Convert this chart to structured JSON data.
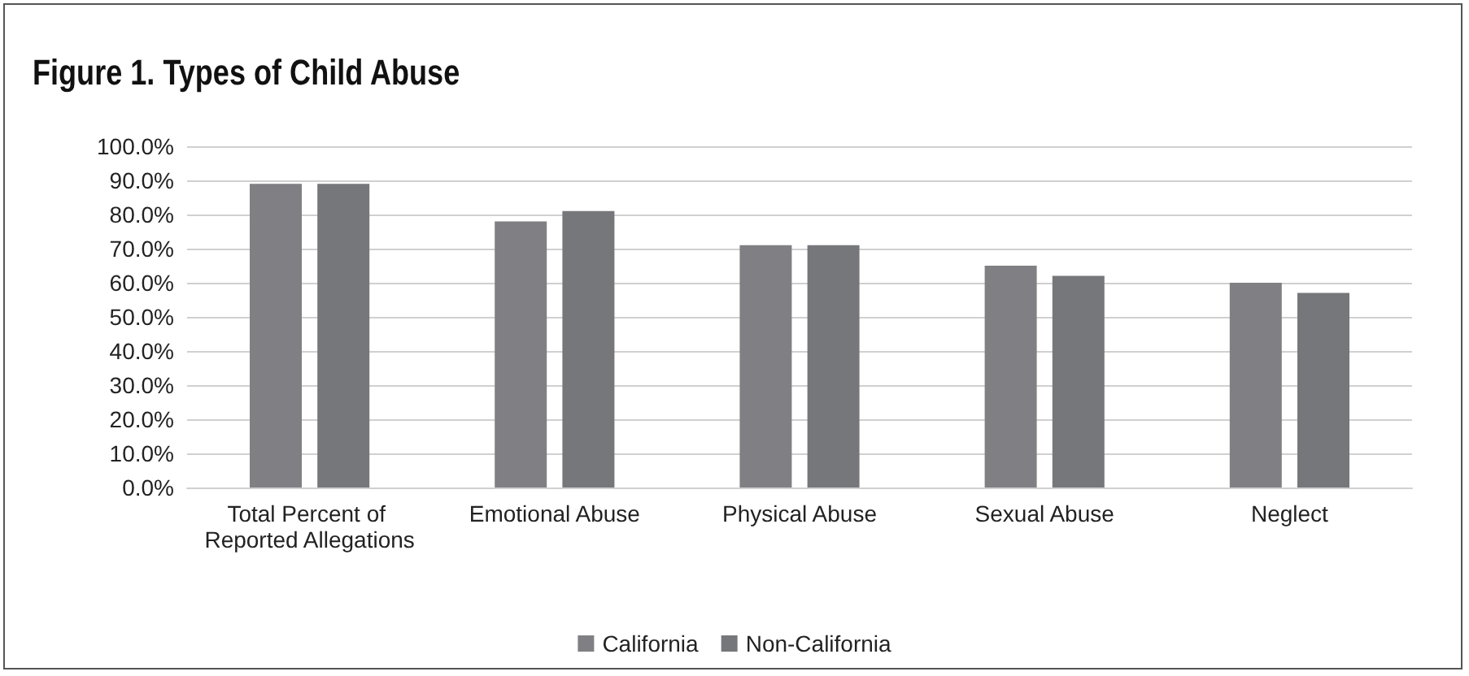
{
  "chart_data": {
    "type": "bar",
    "title": "Figure 1.  Types of Child Abuse",
    "categories": [
      "Total Percent of Reported Allegations",
      "Emotional Abuse",
      "Physical Abuse",
      "Sexual Abuse",
      "Neglect"
    ],
    "series": [
      {
        "name": "California",
        "color": "#808084",
        "values": [
          89,
          78,
          71,
          65,
          60
        ]
      },
      {
        "name": "Non-California",
        "color": "#76777b",
        "values": [
          89,
          81,
          71,
          62,
          57
        ]
      }
    ],
    "ylim": [
      0,
      100
    ],
    "yticks": [
      {
        "value": 0,
        "label": "0.0%"
      },
      {
        "value": 10,
        "label": "10.0%"
      },
      {
        "value": 20,
        "label": "20.0%"
      },
      {
        "value": 30,
        "label": "30.0%"
      },
      {
        "value": 40,
        "label": "40.0%"
      },
      {
        "value": 50,
        "label": "50.0%"
      },
      {
        "value": 60,
        "label": "60.0%"
      },
      {
        "value": 70,
        "label": "70.0%"
      },
      {
        "value": 80,
        "label": "80.0%"
      },
      {
        "value": 90,
        "label": "90.0%"
      },
      {
        "value": 100,
        "label": "100.0%"
      }
    ],
    "grid": "y",
    "legend": "bottom"
  }
}
